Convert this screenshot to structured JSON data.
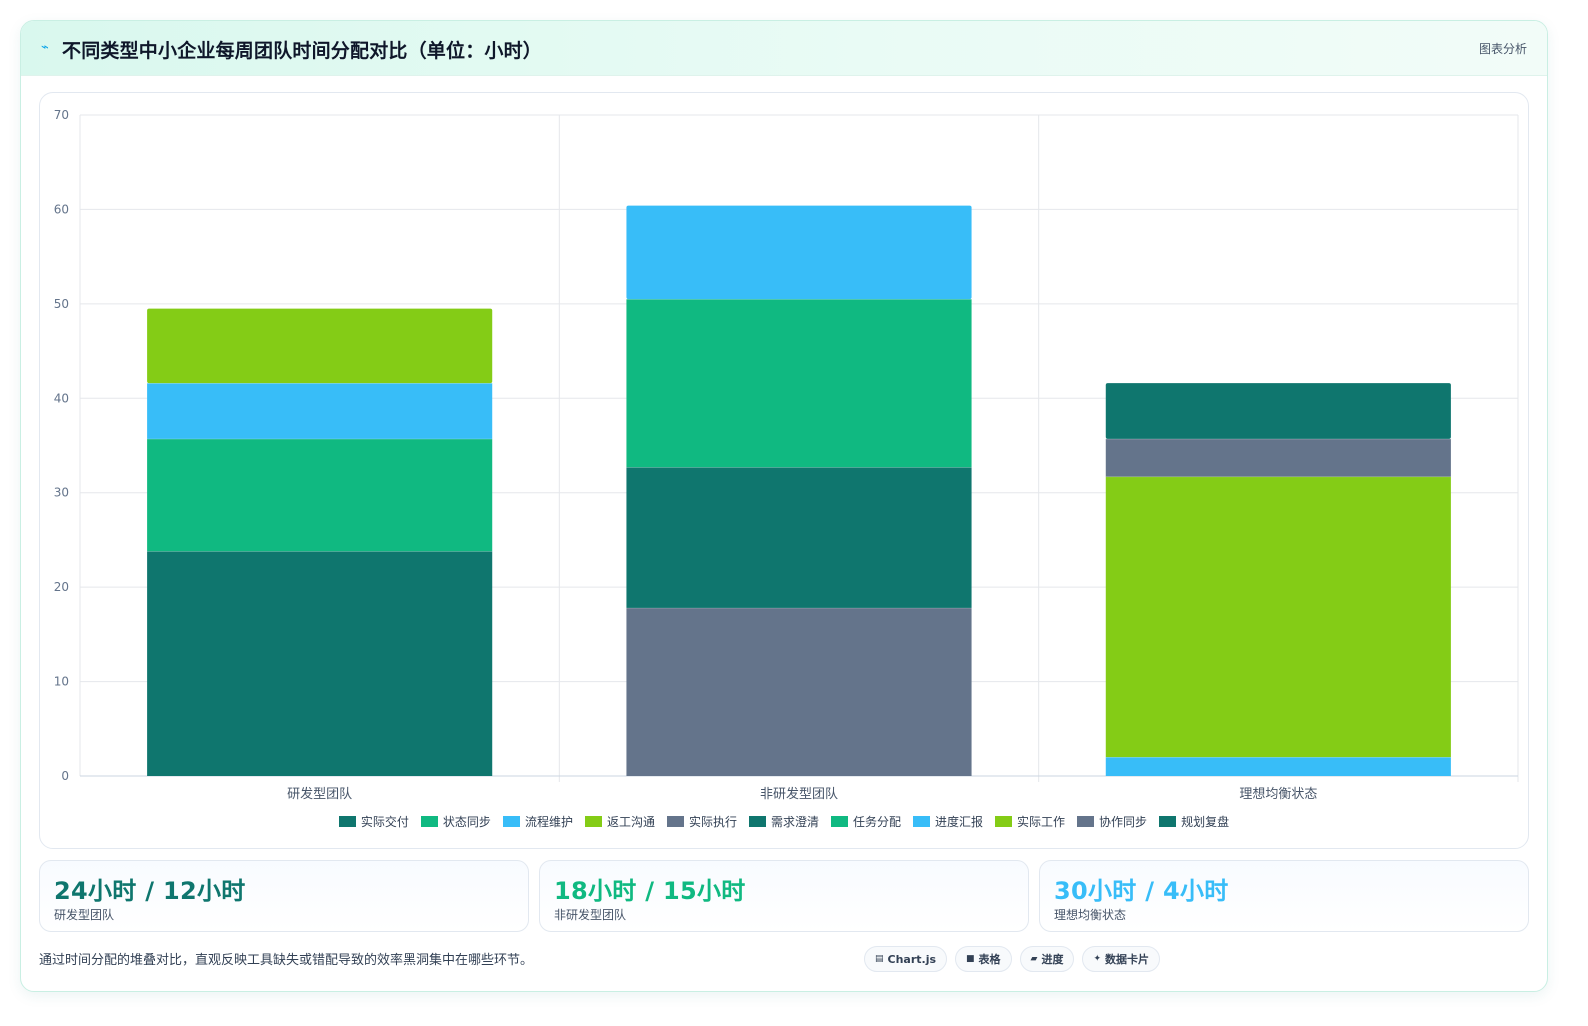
{
  "header": {
    "title": "不同类型中小企业每周团队时间分配对比（单位：小时）",
    "tag": "图表分析",
    "icon": "activity-icon"
  },
  "chart_data": {
    "type": "bar",
    "stacked": true,
    "categories": [
      "研发型团队",
      "非研发型团队",
      "理想均衡状态"
    ],
    "ylim": [
      0,
      70
    ],
    "yticks": [
      0,
      10,
      20,
      30,
      40,
      50,
      60,
      70
    ],
    "grid": true,
    "legend_position": "bottom",
    "series": [
      {
        "name": "实际交付",
        "color": "#0f766e",
        "values": [
          23.8,
          0,
          0
        ]
      },
      {
        "name": "状态同步",
        "color": "#10b981",
        "values": [
          11.9,
          0,
          0
        ]
      },
      {
        "name": "流程维护",
        "color": "#38bdf8",
        "values": [
          5.9,
          0,
          0
        ]
      },
      {
        "name": "返工沟通",
        "color": "#84cc16",
        "values": [
          7.9,
          0,
          0
        ]
      },
      {
        "name": "实际执行",
        "color": "#64748b",
        "values": [
          0,
          17.8,
          0
        ]
      },
      {
        "name": "需求澄清",
        "color": "#0f766e",
        "values": [
          0,
          14.9,
          0
        ]
      },
      {
        "name": "任务分配",
        "color": "#10b981",
        "values": [
          0,
          17.8,
          0
        ]
      },
      {
        "name": "进度汇报",
        "color": "#38bdf8",
        "values": [
          0,
          9.9,
          2.0
        ]
      },
      {
        "name": "实际工作",
        "color": "#84cc16",
        "values": [
          0,
          0,
          29.7
        ]
      },
      {
        "name": "协作同步",
        "color": "#64748b",
        "values": [
          0,
          0,
          4.0
        ]
      },
      {
        "name": "规划复盘",
        "color": "#0f766e",
        "values": [
          0,
          0,
          5.9
        ]
      }
    ]
  },
  "stats": [
    {
      "value": "24小时 / 12小时",
      "label": "研发型团队",
      "color": "#0f766e"
    },
    {
      "value": "18小时 / 15小时",
      "label": "非研发型团队",
      "color": "#10b981"
    },
    {
      "value": "30小时 / 4小时",
      "label": "理想均衡状态",
      "color": "#38bdf8"
    }
  ],
  "footer": {
    "note": "通过时间分配的堆叠对比，直观反映工具缺失或错配导致的效率黑洞集中在哪些环节。",
    "chips": [
      {
        "label": "Chart.js",
        "icon": "chart-icon"
      },
      {
        "label": "表格",
        "icon": "table-icon"
      },
      {
        "label": "进度",
        "icon": "progress-icon"
      },
      {
        "label": "数据卡片",
        "icon": "sparkle-icon"
      }
    ]
  }
}
